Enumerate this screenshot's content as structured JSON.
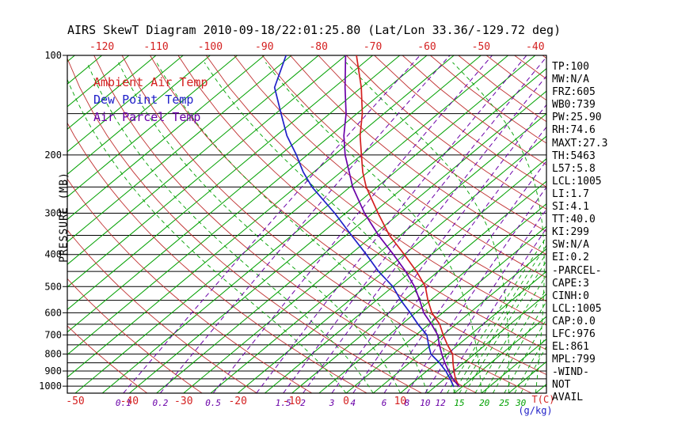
{
  "title": "AIRS SkewT Diagram 2010-09-18/22:01:25.80 (Lat/Lon 33.36/-129.72 deg)",
  "legend": [
    {
      "label": "Ambient Air Temp",
      "color": "#D42020"
    },
    {
      "label": "Dew Point Temp",
      "color": "#2020C8"
    },
    {
      "label": "Air Parcel Temp",
      "color": "#6A00A8"
    }
  ],
  "axes": {
    "y_label": "PRESSURE (MB)",
    "pressure_ticks": [
      100,
      200,
      300,
      400,
      500,
      600,
      700,
      800,
      900,
      1000
    ],
    "top_temp_ticks": [
      -120,
      -110,
      -100,
      -90,
      -80,
      -70,
      -60,
      -50,
      -40
    ],
    "bottom_temp_ticks": [
      -50,
      -40,
      -30,
      -20,
      -10,
      0,
      10
    ],
    "temp_unit": "T(C)",
    "mixing_unit": "(g/kg)"
  },
  "chart_data": {
    "type": "skewt-log-p",
    "pressure_axis": {
      "min": 100,
      "max": 1050,
      "scale": "log",
      "gridline_step_mb": 50
    },
    "temperature_at_1000mb_range": [
      -51,
      37
    ],
    "isotherms_c": {
      "min": -125,
      "max": 35,
      "step": 5
    },
    "dry_adiabats_c": {
      "min": -40,
      "max": 180,
      "step": 10
    },
    "moist_adiabats_c": [
      0,
      5,
      10,
      15,
      20,
      25,
      30,
      35
    ],
    "mixing_ratio_violet_gkg": [
      0.1,
      0.2,
      0.5,
      1,
      1.5,
      2,
      3,
      4,
      6,
      8,
      10,
      12
    ],
    "mixing_ratio_green_gkg": [
      13,
      14,
      15,
      16,
      18,
      20,
      22,
      25,
      28,
      30
    ],
    "mixing_ratio_labels_violet": [
      0.1,
      0.2,
      0.5,
      1.5,
      2,
      3,
      4,
      6,
      8,
      10,
      12
    ],
    "mixing_ratio_labels_green": [
      15,
      20,
      25,
      30
    ],
    "series": [
      {
        "name": "Ambient Air Temp",
        "color": "#D42020",
        "points": [
          [
            1005,
            19.5
          ],
          [
            950,
            17
          ],
          [
            900,
            15
          ],
          [
            850,
            13
          ],
          [
            800,
            11
          ],
          [
            750,
            8
          ],
          [
            700,
            5
          ],
          [
            650,
            2
          ],
          [
            600,
            -2
          ],
          [
            550,
            -5.5
          ],
          [
            500,
            -9
          ],
          [
            450,
            -14
          ],
          [
            400,
            -20
          ],
          [
            350,
            -27
          ],
          [
            300,
            -34
          ],
          [
            250,
            -42
          ],
          [
            225,
            -46
          ],
          [
            200,
            -50
          ],
          [
            175,
            -54.5
          ],
          [
            150,
            -59
          ],
          [
            125,
            -65
          ],
          [
            100,
            -73
          ]
        ]
      },
      {
        "name": "Dew Point Temp",
        "color": "#2020C8",
        "points": [
          [
            1005,
            18.5
          ],
          [
            950,
            16
          ],
          [
            900,
            13.5
          ],
          [
            850,
            10.5
          ],
          [
            800,
            7
          ],
          [
            750,
            4.5
          ],
          [
            700,
            2
          ],
          [
            650,
            -2
          ],
          [
            600,
            -6
          ],
          [
            550,
            -10.5
          ],
          [
            500,
            -15
          ],
          [
            450,
            -21
          ],
          [
            400,
            -27
          ],
          [
            350,
            -34
          ],
          [
            300,
            -42
          ],
          [
            250,
            -52
          ],
          [
            225,
            -57
          ],
          [
            200,
            -62
          ],
          [
            175,
            -68
          ],
          [
            150,
            -74
          ],
          [
            125,
            -81
          ],
          [
            100,
            -86
          ]
        ]
      },
      {
        "name": "Air Parcel Temp",
        "color": "#6A00A8",
        "points": [
          [
            1005,
            19.5
          ],
          [
            950,
            16.5
          ],
          [
            900,
            14
          ],
          [
            850,
            11.5
          ],
          [
            800,
            9
          ],
          [
            750,
            6.5
          ],
          [
            700,
            4
          ],
          [
            650,
            0.5
          ],
          [
            600,
            -3.5
          ],
          [
            550,
            -7
          ],
          [
            500,
            -11
          ],
          [
            450,
            -16
          ],
          [
            400,
            -22
          ],
          [
            350,
            -29
          ],
          [
            300,
            -36.5
          ],
          [
            250,
            -44.5
          ],
          [
            225,
            -48.5
          ],
          [
            200,
            -53
          ],
          [
            175,
            -57.5
          ],
          [
            150,
            -62
          ],
          [
            125,
            -68
          ],
          [
            100,
            -75
          ]
        ]
      }
    ]
  },
  "stats_panel": [
    "TP:100",
    "MW:N/A",
    "FRZ:605",
    "WB0:739",
    "PW:25.90",
    "RH:74.6",
    "MAXT:27.3",
    "TH:5463",
    "L57:5.8",
    "LCL:1005",
    "LI:1.7",
    "SI:4.1",
    "TT:40.0",
    "KI:299",
    "SW:N/A",
    "EI:0.2",
    "-PARCEL-",
    "CAPE:3",
    "CINH:0",
    "LCL:1005",
    "CAP:0.0",
    "LFC:976",
    "EL:861",
    "MPL:799",
    "-WIND-",
    "NOT",
    "AVAIL"
  ]
}
